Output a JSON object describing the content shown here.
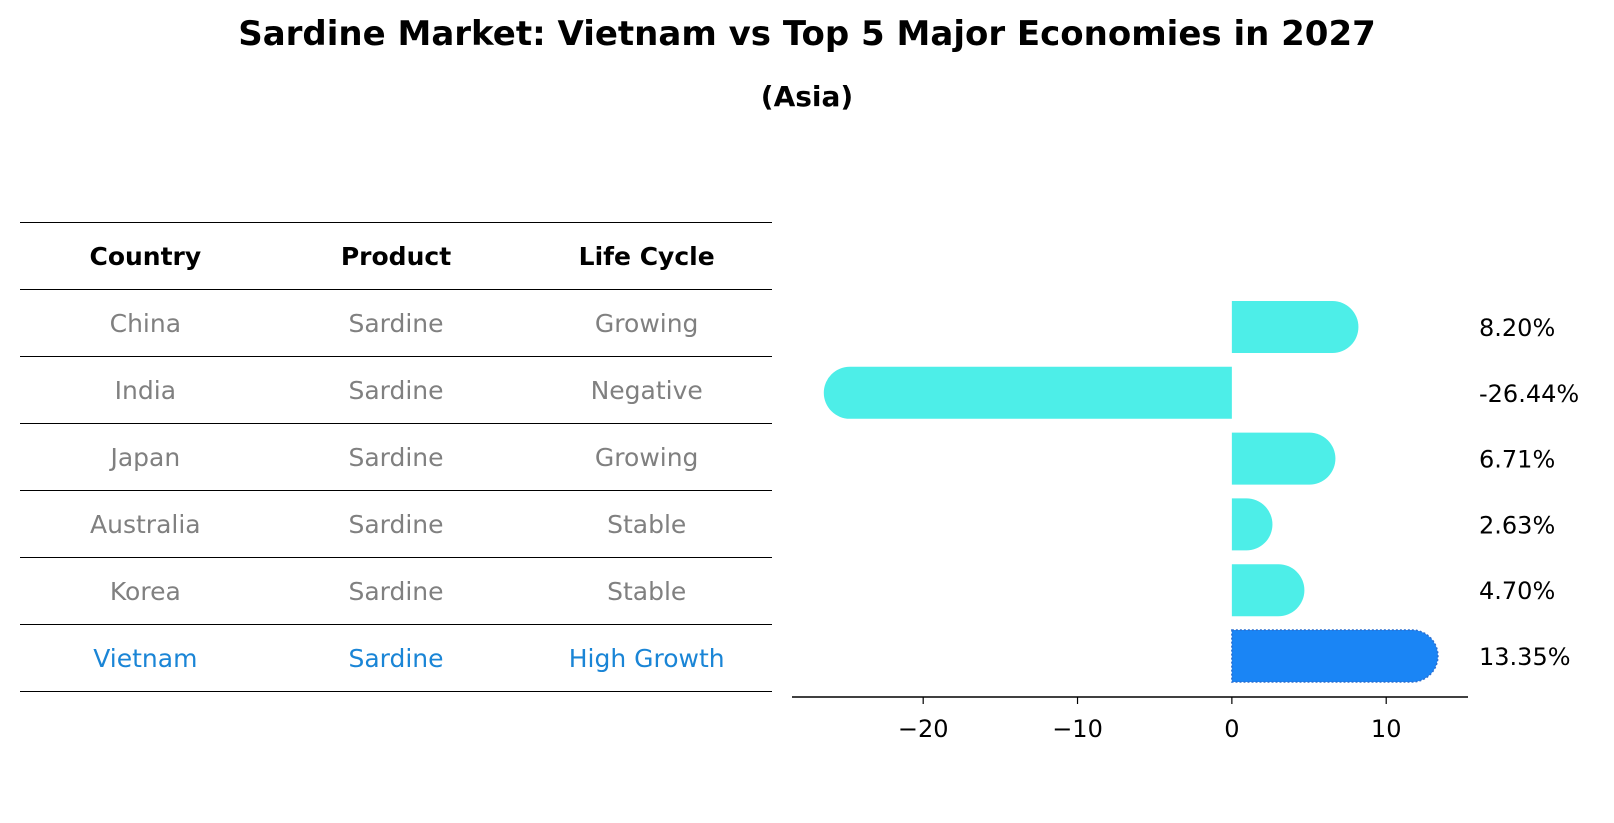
{
  "chart_data": {
    "type": "bar",
    "orientation": "horizontal",
    "title": "Sardine Market: Vietnam vs Top 5 Major Economies in 2027",
    "subtitle": "(Asia)",
    "categories": [
      "China",
      "India",
      "Japan",
      "Australia",
      "Korea",
      "Vietnam"
    ],
    "values": [
      8.2,
      -26.44,
      6.71,
      2.63,
      4.7,
      13.35
    ],
    "value_labels": [
      "8.20%",
      "-26.44%",
      "6.71%",
      "2.63%",
      "4.70%",
      "13.35%"
    ],
    "xlim": [
      -28.5,
      15.3
    ],
    "xticks": [
      -20,
      -10,
      0,
      10
    ],
    "xtick_labels": [
      "−20",
      "−10",
      "0",
      "10"
    ],
    "grid": false,
    "colors": {
      "default": "#4deee8",
      "highlight": "#1a85f5"
    },
    "highlight_index": 5
  },
  "table": {
    "headers": [
      "Country",
      "Product",
      "Life Cycle"
    ],
    "rows": [
      [
        "China",
        "Sardine",
        "Growing"
      ],
      [
        "India",
        "Sardine",
        "Negative"
      ],
      [
        "Japan",
        "Sardine",
        "Growing"
      ],
      [
        "Australia",
        "Sardine",
        "Stable"
      ],
      [
        "Korea",
        "Sardine",
        "Stable"
      ],
      [
        "Vietnam",
        "Sardine",
        "High Growth"
      ]
    ],
    "highlight_row": 5,
    "highlight_color": "#1a85d6"
  }
}
